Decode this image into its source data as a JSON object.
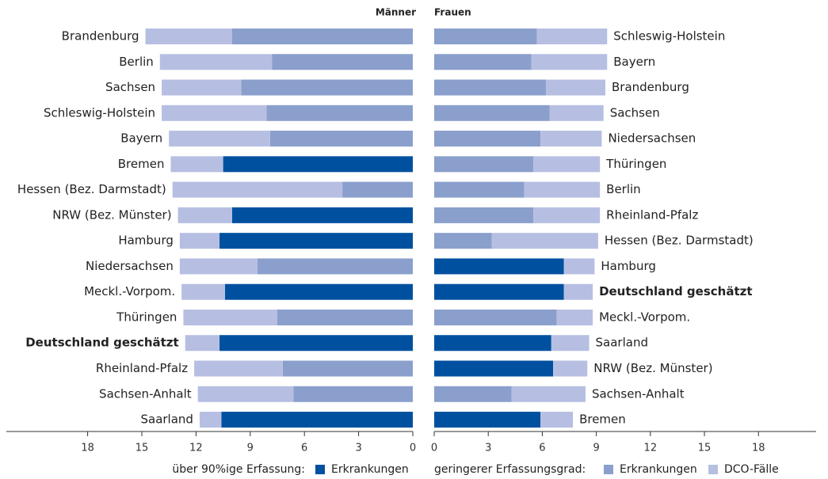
{
  "chart_data": {
    "type": "butterfly_bar",
    "series": [
      {
        "group": "über 90%ige Erfassung:",
        "name": "Erkrankungen",
        "color": "#0050a0"
      },
      {
        "group": "geringerer Erfassungsgrad:",
        "name": "Erkrankungen",
        "color": "#8a9fcc"
      },
      {
        "name": "DCO-Fälle",
        "color": "#b6bfe2"
      }
    ],
    "panels": [
      {
        "title": "Männer",
        "direction": "left",
        "xlim": [
          0,
          22.5
        ],
        "xticks": [
          0,
          3,
          6,
          9,
          12,
          15,
          18
        ],
        "bold_index": 12,
        "categories": [
          "Brandenburg",
          "Berlin",
          "Sachsen",
          "Schleswig-Holstein",
          "Bayern",
          "Bremen",
          "Hessen (Bez. Darmstadt)",
          "NRW (Bez. Münster)",
          "Hamburg",
          "Niedersachsen",
          "Meckl.-Vorpom.",
          "Thüringen",
          "Deutschland geschätzt",
          "Rheinland-Pfalz",
          "Sachsen-Anhalt",
          "Saarland"
        ],
        "series": [
          [
            null,
            null,
            null,
            null,
            null,
            10.5,
            null,
            10.0,
            10.7,
            null,
            10.4,
            null,
            10.7,
            null,
            null,
            10.6
          ],
          [
            10.0,
            7.8,
            9.5,
            8.1,
            7.9,
            null,
            3.9,
            null,
            null,
            8.6,
            null,
            7.5,
            null,
            7.2,
            6.6,
            null
          ],
          [
            4.8,
            6.2,
            4.4,
            5.8,
            5.6,
            2.9,
            9.4,
            3.0,
            2.2,
            4.3,
            2.4,
            5.2,
            1.9,
            4.9,
            5.3,
            1.2
          ]
        ]
      },
      {
        "title": "Frauen",
        "direction": "right",
        "xlim": [
          0,
          21.2
        ],
        "xticks": [
          0,
          3,
          6,
          9,
          12,
          15,
          18
        ],
        "bold_index": 10,
        "categories": [
          "Schleswig-Holstein",
          "Bayern",
          "Brandenburg",
          "Sachsen",
          "Niedersachsen",
          "Thüringen",
          "Berlin",
          "Rheinland-Pfalz",
          "Hessen (Bez. Darmstadt)",
          "Hamburg",
          "Deutschland geschätzt",
          "Meckl.-Vorpom.",
          "Saarland",
          "NRW (Bez. Münster)",
          "Sachsen-Anhalt",
          "Bremen"
        ],
        "series": [
          [
            null,
            null,
            null,
            null,
            null,
            null,
            null,
            null,
            null,
            7.2,
            7.2,
            null,
            6.5,
            6.6,
            null,
            5.9
          ],
          [
            5.7,
            5.4,
            6.2,
            6.4,
            5.9,
            5.5,
            5.0,
            5.5,
            3.2,
            null,
            null,
            6.8,
            null,
            null,
            4.3,
            null
          ],
          [
            3.9,
            4.2,
            3.3,
            3.0,
            3.4,
            3.7,
            4.2,
            3.7,
            5.9,
            1.7,
            1.6,
            2.0,
            2.1,
            1.9,
            4.1,
            1.8
          ]
        ]
      }
    ]
  }
}
